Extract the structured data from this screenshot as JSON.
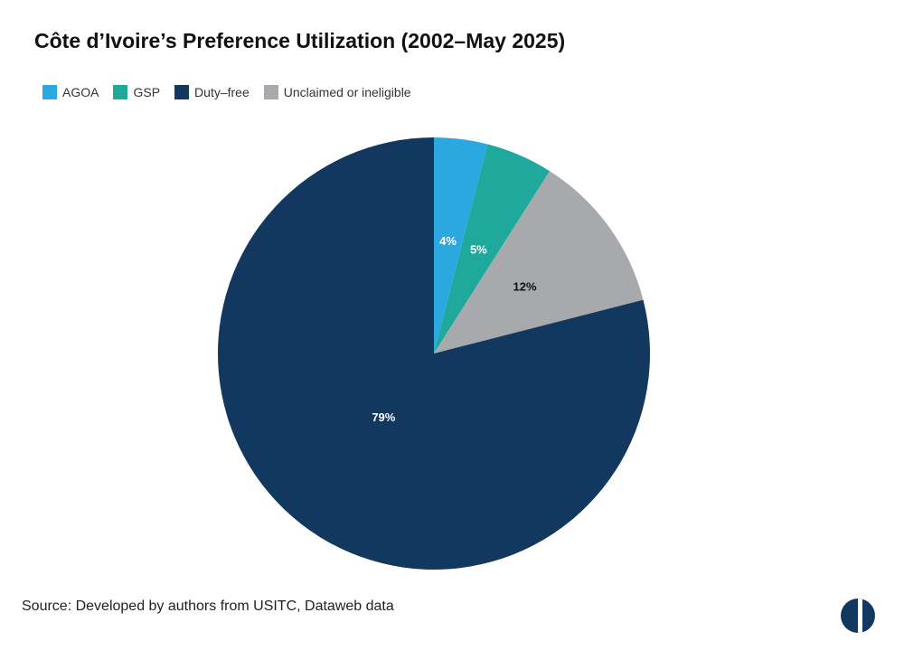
{
  "chart_data": {
    "type": "pie",
    "title": "Côte d’Ivoire’s Preference Utilization (2002–May 2025)",
    "slices": [
      {
        "label": "AGOA",
        "value": 4,
        "display": "4%",
        "color": "#2ba8e0",
        "label_color": "#ffffff"
      },
      {
        "label": "GSP",
        "value": 5,
        "display": "5%",
        "color": "#1fa89c",
        "label_color": "#ffffff"
      },
      {
        "label": "Unclaimed or ineligible",
        "value": 12,
        "display": "12%",
        "color": "#a7a9ac",
        "label_color": "#111111"
      },
      {
        "label": "Duty–free",
        "value": 79,
        "display": "79%",
        "color": "#12385f",
        "label_color": "#ffffff"
      }
    ],
    "legend": [
      {
        "label": "AGOA",
        "color": "#2ba8e0"
      },
      {
        "label": "GSP",
        "color": "#1fa89c"
      },
      {
        "label": "Duty–free",
        "color": "#12385f"
      },
      {
        "label": "Unclaimed or ineligible",
        "color": "#a7a9ac"
      }
    ],
    "legend_position": "top-left"
  },
  "source": "Source: Developed by authors from USITC, Dataweb data",
  "logo_icon": "half-circle-logo-icon"
}
